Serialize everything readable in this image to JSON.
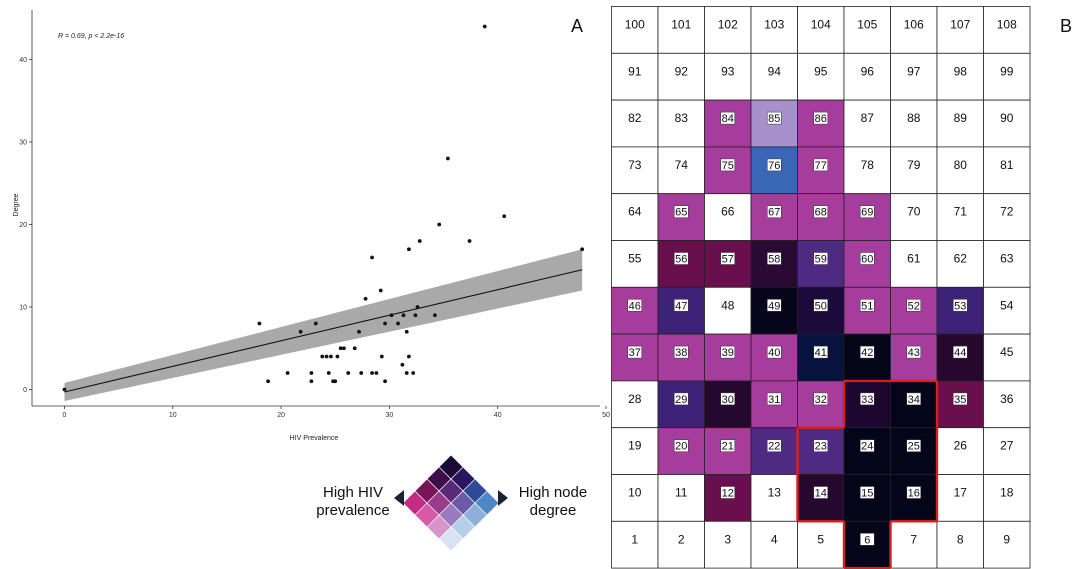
{
  "panel_a_label": "A",
  "panel_b_label": "B",
  "legend": {
    "left_label_line1": "High HIV",
    "left_label_line2": "prevalence",
    "right_label_line1": "High node",
    "right_label_line2": "degree",
    "palette": [
      [
        "#1a0a35",
        "#2a1660",
        "#2e4a9a",
        "#4f86c7"
      ],
      [
        "#3f0d4a",
        "#5a2a7a",
        "#6b5aa8",
        "#8cb0da"
      ],
      [
        "#7a1458",
        "#9a3a8a",
        "#9a7ac0",
        "#b6cfe8"
      ],
      [
        "#c42a86",
        "#d65aa6",
        "#d794c8",
        "#d7e3f2"
      ]
    ]
  },
  "chart_data": [
    {
      "type": "scatter",
      "title": "",
      "annotation": "R = 0.69, p < 2.2e-16",
      "xlabel": "HIV Prevalence",
      "ylabel": "Degree",
      "xlim": [
        -3,
        50
      ],
      "ylim": [
        -2,
        46
      ],
      "x_ticks": [
        0,
        10,
        20,
        30,
        40,
        50
      ],
      "y_ticks": [
        0,
        10,
        20,
        30,
        40
      ],
      "x_tick_labels": [
        "0",
        "10",
        "20",
        "30",
        "40",
        "50"
      ],
      "y_tick_labels": [
        "0",
        "10",
        "20",
        "30",
        "40"
      ],
      "grid": false,
      "regression": {
        "intercept": -0.3,
        "slope": 0.31,
        "x_range": [
          0,
          47.8
        ],
        "ci_upper": [
          0.8,
          17.0
        ],
        "ci_lower": [
          -1.4,
          12.0
        ]
      },
      "points": [
        [
          0,
          0
        ],
        [
          18,
          8
        ],
        [
          18.8,
          1
        ],
        [
          20.6,
          2
        ],
        [
          21.8,
          7
        ],
        [
          22.8,
          1
        ],
        [
          22.8,
          2
        ],
        [
          23.2,
          8
        ],
        [
          23.8,
          4
        ],
        [
          24.2,
          4
        ],
        [
          24.4,
          2
        ],
        [
          24.6,
          4
        ],
        [
          24.8,
          1
        ],
        [
          25,
          1
        ],
        [
          25.2,
          4
        ],
        [
          25.5,
          5
        ],
        [
          25.8,
          5
        ],
        [
          26.2,
          2
        ],
        [
          26.8,
          5
        ],
        [
          27.4,
          2
        ],
        [
          27.2,
          7
        ],
        [
          27.8,
          11
        ],
        [
          28.4,
          16
        ],
        [
          28.4,
          2
        ],
        [
          28.8,
          2
        ],
        [
          29.2,
          12
        ],
        [
          29.3,
          4
        ],
        [
          29.6,
          1
        ],
        [
          29.6,
          8
        ],
        [
          30.2,
          9
        ],
        [
          30.8,
          8
        ],
        [
          31.2,
          3
        ],
        [
          31.3,
          9
        ],
        [
          31.6,
          7
        ],
        [
          31.6,
          2
        ],
        [
          31.8,
          4
        ],
        [
          31.8,
          17
        ],
        [
          32.2,
          2
        ],
        [
          32.4,
          9
        ],
        [
          32.6,
          10
        ],
        [
          32.8,
          18
        ],
        [
          34.2,
          9
        ],
        [
          34.6,
          20
        ],
        [
          35.4,
          28
        ],
        [
          37.4,
          18
        ],
        [
          38.8,
          44
        ],
        [
          40.6,
          21
        ],
        [
          47.8,
          17
        ]
      ]
    },
    {
      "type": "heatmap",
      "title": "",
      "rows": 12,
      "cols": 9,
      "cells": [
        {
          "label": "100",
          "color": "#ffffff",
          "boxed": false,
          "highlight": false
        },
        {
          "label": "101",
          "color": "#ffffff",
          "boxed": false,
          "highlight": false
        },
        {
          "label": "102",
          "color": "#ffffff",
          "boxed": false,
          "highlight": false
        },
        {
          "label": "103",
          "color": "#ffffff",
          "boxed": false,
          "highlight": false
        },
        {
          "label": "104",
          "color": "#ffffff",
          "boxed": false,
          "highlight": false
        },
        {
          "label": "105",
          "color": "#ffffff",
          "boxed": false,
          "highlight": false
        },
        {
          "label": "106",
          "color": "#ffffff",
          "boxed": false,
          "highlight": false
        },
        {
          "label": "107",
          "color": "#ffffff",
          "boxed": false,
          "highlight": false
        },
        {
          "label": "108",
          "color": "#ffffff",
          "boxed": false,
          "highlight": false
        },
        {
          "label": "91",
          "color": "#ffffff",
          "boxed": false,
          "highlight": false
        },
        {
          "label": "92",
          "color": "#ffffff",
          "boxed": false,
          "highlight": false
        },
        {
          "label": "93",
          "color": "#ffffff",
          "boxed": false,
          "highlight": false
        },
        {
          "label": "94",
          "color": "#ffffff",
          "boxed": false,
          "highlight": false
        },
        {
          "label": "95",
          "color": "#ffffff",
          "boxed": false,
          "highlight": false
        },
        {
          "label": "96",
          "color": "#ffffff",
          "boxed": false,
          "highlight": false
        },
        {
          "label": "97",
          "color": "#ffffff",
          "boxed": false,
          "highlight": false
        },
        {
          "label": "98",
          "color": "#ffffff",
          "boxed": false,
          "highlight": false
        },
        {
          "label": "99",
          "color": "#ffffff",
          "boxed": false,
          "highlight": false
        },
        {
          "label": "82",
          "color": "#ffffff",
          "boxed": false,
          "highlight": false
        },
        {
          "label": "83",
          "color": "#ffffff",
          "boxed": false,
          "highlight": false
        },
        {
          "label": "84",
          "color": "#a63c9c",
          "boxed": true,
          "highlight": false
        },
        {
          "label": "85",
          "color": "#a890cc",
          "boxed": true,
          "highlight": false
        },
        {
          "label": "86",
          "color": "#a63c9c",
          "boxed": true,
          "highlight": false
        },
        {
          "label": "87",
          "color": "#ffffff",
          "boxed": false,
          "highlight": false
        },
        {
          "label": "88",
          "color": "#ffffff",
          "boxed": false,
          "highlight": false
        },
        {
          "label": "89",
          "color": "#ffffff",
          "boxed": false,
          "highlight": false
        },
        {
          "label": "90",
          "color": "#ffffff",
          "boxed": false,
          "highlight": false
        },
        {
          "label": "73",
          "color": "#ffffff",
          "boxed": false,
          "highlight": false
        },
        {
          "label": "74",
          "color": "#ffffff",
          "boxed": false,
          "highlight": false
        },
        {
          "label": "75",
          "color": "#a63c9c",
          "boxed": true,
          "highlight": false
        },
        {
          "label": "76",
          "color": "#3a66b8",
          "boxed": true,
          "highlight": false
        },
        {
          "label": "77",
          "color": "#a63c9c",
          "boxed": true,
          "highlight": false
        },
        {
          "label": "78",
          "color": "#ffffff",
          "boxed": false,
          "highlight": false
        },
        {
          "label": "79",
          "color": "#ffffff",
          "boxed": false,
          "highlight": false
        },
        {
          "label": "80",
          "color": "#ffffff",
          "boxed": false,
          "highlight": false
        },
        {
          "label": "81",
          "color": "#ffffff",
          "boxed": false,
          "highlight": false
        },
        {
          "label": "64",
          "color": "#ffffff",
          "boxed": false,
          "highlight": false
        },
        {
          "label": "65",
          "color": "#a63c9c",
          "boxed": true,
          "highlight": false
        },
        {
          "label": "66",
          "color": "#ffffff",
          "boxed": false,
          "highlight": false
        },
        {
          "label": "67",
          "color": "#a63c9c",
          "boxed": true,
          "highlight": false
        },
        {
          "label": "68",
          "color": "#a63c9c",
          "boxed": true,
          "highlight": false
        },
        {
          "label": "69",
          "color": "#a63c9c",
          "boxed": true,
          "highlight": false
        },
        {
          "label": "70",
          "color": "#ffffff",
          "boxed": false,
          "highlight": false
        },
        {
          "label": "71",
          "color": "#ffffff",
          "boxed": false,
          "highlight": false
        },
        {
          "label": "72",
          "color": "#ffffff",
          "boxed": false,
          "highlight": false
        },
        {
          "label": "55",
          "color": "#ffffff",
          "boxed": false,
          "highlight": false
        },
        {
          "label": "56",
          "color": "#6a0f4e",
          "boxed": true,
          "highlight": false
        },
        {
          "label": "57",
          "color": "#6a0f4e",
          "boxed": true,
          "highlight": false
        },
        {
          "label": "58",
          "color": "#2a0a35",
          "boxed": true,
          "highlight": false
        },
        {
          "label": "59",
          "color": "#4e2a82",
          "boxed": true,
          "highlight": false
        },
        {
          "label": "60",
          "color": "#a63c9c",
          "boxed": true,
          "highlight": false
        },
        {
          "label": "61",
          "color": "#ffffff",
          "boxed": false,
          "highlight": false
        },
        {
          "label": "62",
          "color": "#ffffff",
          "boxed": false,
          "highlight": false
        },
        {
          "label": "63",
          "color": "#ffffff",
          "boxed": false,
          "highlight": false
        },
        {
          "label": "46",
          "color": "#a63c9c",
          "boxed": true,
          "highlight": false
        },
        {
          "label": "47",
          "color": "#3e2278",
          "boxed": true,
          "highlight": false
        },
        {
          "label": "48",
          "color": "#ffffff",
          "boxed": false,
          "highlight": false
        },
        {
          "label": "49",
          "color": "#07051c",
          "boxed": true,
          "highlight": false
        },
        {
          "label": "50",
          "color": "#1c0a3a",
          "boxed": true,
          "highlight": false
        },
        {
          "label": "51",
          "color": "#a63c9c",
          "boxed": true,
          "highlight": false
        },
        {
          "label": "52",
          "color": "#a63c9c",
          "boxed": true,
          "highlight": false
        },
        {
          "label": "53",
          "color": "#3e2278",
          "boxed": true,
          "highlight": false
        },
        {
          "label": "54",
          "color": "#ffffff",
          "boxed": false,
          "highlight": false
        },
        {
          "label": "37",
          "color": "#a63c9c",
          "boxed": true,
          "highlight": false
        },
        {
          "label": "38",
          "color": "#a63c9c",
          "boxed": true,
          "highlight": false
        },
        {
          "label": "39",
          "color": "#a63c9c",
          "boxed": true,
          "highlight": false
        },
        {
          "label": "40",
          "color": "#a63c9c",
          "boxed": true,
          "highlight": false
        },
        {
          "label": "41",
          "color": "#08123e",
          "boxed": true,
          "highlight": false
        },
        {
          "label": "42",
          "color": "#05051a",
          "boxed": true,
          "highlight": false
        },
        {
          "label": "43",
          "color": "#a63c9c",
          "boxed": true,
          "highlight": false
        },
        {
          "label": "44",
          "color": "#26082e",
          "boxed": true,
          "highlight": false
        },
        {
          "label": "45",
          "color": "#ffffff",
          "boxed": false,
          "highlight": false
        },
        {
          "label": "28",
          "color": "#ffffff",
          "boxed": false,
          "highlight": false
        },
        {
          "label": "29",
          "color": "#3e2278",
          "boxed": true,
          "highlight": false
        },
        {
          "label": "30",
          "color": "#24082e",
          "boxed": true,
          "highlight": false
        },
        {
          "label": "31",
          "color": "#a63c9c",
          "boxed": true,
          "highlight": false
        },
        {
          "label": "32",
          "color": "#a63c9c",
          "boxed": true,
          "highlight": false
        },
        {
          "label": "33",
          "color": "#1c0630",
          "boxed": true,
          "highlight": true
        },
        {
          "label": "34",
          "color": "#05051a",
          "boxed": true,
          "highlight": true
        },
        {
          "label": "35",
          "color": "#6a0f4e",
          "boxed": true,
          "highlight": false
        },
        {
          "label": "36",
          "color": "#ffffff",
          "boxed": false,
          "highlight": false
        },
        {
          "label": "19",
          "color": "#ffffff",
          "boxed": false,
          "highlight": false
        },
        {
          "label": "20",
          "color": "#a63c9c",
          "boxed": true,
          "highlight": false
        },
        {
          "label": "21",
          "color": "#a63c9c",
          "boxed": true,
          "highlight": false
        },
        {
          "label": "22",
          "color": "#4e2a82",
          "boxed": true,
          "highlight": false
        },
        {
          "label": "23",
          "color": "#4e2a82",
          "boxed": true,
          "highlight": true
        },
        {
          "label": "24",
          "color": "#05051a",
          "boxed": true,
          "highlight": true
        },
        {
          "label": "25",
          "color": "#05051a",
          "boxed": true,
          "highlight": true
        },
        {
          "label": "26",
          "color": "#ffffff",
          "boxed": false,
          "highlight": false
        },
        {
          "label": "27",
          "color": "#ffffff",
          "boxed": false,
          "highlight": false
        },
        {
          "label": "10",
          "color": "#ffffff",
          "boxed": false,
          "highlight": false
        },
        {
          "label": "11",
          "color": "#ffffff",
          "boxed": false,
          "highlight": false
        },
        {
          "label": "12",
          "color": "#6a0f4e",
          "boxed": true,
          "highlight": false
        },
        {
          "label": "13",
          "color": "#ffffff",
          "boxed": false,
          "highlight": false
        },
        {
          "label": "14",
          "color": "#24082e",
          "boxed": true,
          "highlight": true
        },
        {
          "label": "15",
          "color": "#05051a",
          "boxed": true,
          "highlight": true
        },
        {
          "label": "16",
          "color": "#05051a",
          "boxed": true,
          "highlight": true
        },
        {
          "label": "17",
          "color": "#ffffff",
          "boxed": false,
          "highlight": false
        },
        {
          "label": "18",
          "color": "#ffffff",
          "boxed": false,
          "highlight": false
        },
        {
          "label": "1",
          "color": "#ffffff",
          "boxed": false,
          "highlight": false
        },
        {
          "label": "2",
          "color": "#ffffff",
          "boxed": false,
          "highlight": false
        },
        {
          "label": "3",
          "color": "#ffffff",
          "boxed": false,
          "highlight": false
        },
        {
          "label": "4",
          "color": "#ffffff",
          "boxed": false,
          "highlight": false
        },
        {
          "label": "5",
          "color": "#ffffff",
          "boxed": false,
          "highlight": false
        },
        {
          "label": "6",
          "color": "#05051a",
          "boxed": true,
          "highlight": true
        },
        {
          "label": "7",
          "color": "#ffffff",
          "boxed": false,
          "highlight": false
        },
        {
          "label": "8",
          "color": "#ffffff",
          "boxed": false,
          "highlight": false
        },
        {
          "label": "9",
          "color": "#ffffff",
          "boxed": false,
          "highlight": false
        }
      ],
      "highlight_color": "#d42020"
    }
  ]
}
